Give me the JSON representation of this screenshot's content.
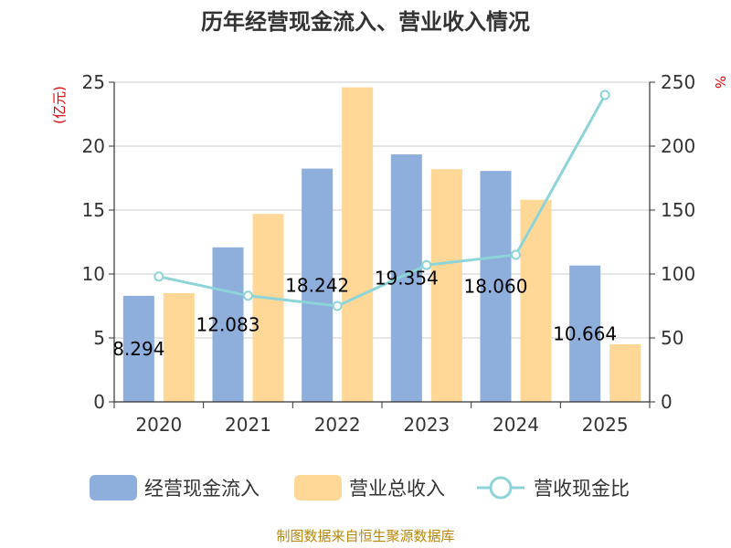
{
  "chart_data": {
    "type": "bar",
    "title": "历年经营现金流入、营业收入情况",
    "categories": [
      "2020",
      "2021",
      "2022",
      "2023",
      "2024",
      "2025"
    ],
    "y_left": {
      "unit": "(亿元)",
      "min": 0,
      "max": 25,
      "ticks": [
        "0",
        "5",
        "10",
        "15",
        "20",
        "25"
      ]
    },
    "y_right": {
      "unit": "%",
      "min": 0,
      "max": 250,
      "ticks": [
        "0",
        "50",
        "100",
        "150",
        "200",
        "250"
      ]
    },
    "series": [
      {
        "name": "经营现金流入",
        "type": "bar",
        "axis": "left",
        "color": "#8eaedb",
        "values": [
          8.294,
          12.083,
          18.242,
          19.354,
          18.06,
          10.664
        ],
        "labels": [
          "8.294",
          "12.083",
          "18.242",
          "19.354",
          "18.060",
          "10.664"
        ]
      },
      {
        "name": "营业总收入",
        "type": "bar",
        "axis": "left",
        "color": "#ffd898",
        "values": [
          8.5,
          14.7,
          24.6,
          18.2,
          15.8,
          4.5
        ]
      },
      {
        "name": "营收现金比",
        "type": "line",
        "axis": "right",
        "color": "#8dd4d8",
        "values": [
          98,
          83,
          75,
          107,
          115,
          240
        ]
      }
    ],
    "grid": true,
    "legend": "bottom"
  },
  "source": "制图数据来自恒生聚源数据库"
}
